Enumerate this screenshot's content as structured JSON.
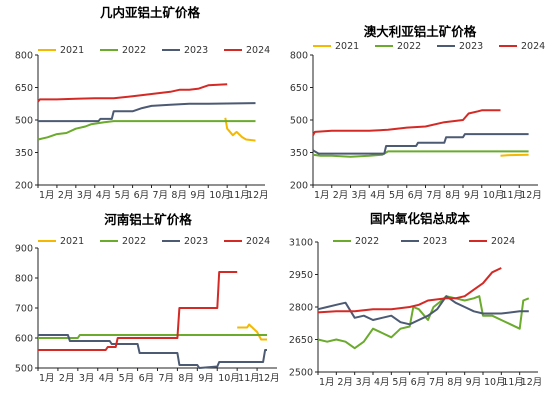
{
  "chart_data": [
    {
      "type": "line",
      "title": "几内亚铝土矿价格",
      "xlabel": "",
      "ylabel": "",
      "ylim": [
        200,
        800
      ],
      "yticks": [
        200,
        350,
        500,
        650,
        800
      ],
      "x_tick_labels": [
        "1月",
        "2月",
        "3月",
        "4月",
        "5月",
        "6月",
        "7月",
        "8月",
        "9月",
        "10月",
        "11月",
        "12月"
      ],
      "legend_placement": "top",
      "series": [
        {
          "name": "2021",
          "color": "#f5b800",
          "points": [
            [
              10.9,
              510
            ],
            [
              11.0,
              460
            ],
            [
              11.1,
              450
            ],
            [
              11.3,
              430
            ],
            [
              11.5,
              445
            ],
            [
              11.8,
              420
            ],
            [
              12.0,
              410
            ],
            [
              12.5,
              405
            ]
          ]
        },
        {
          "name": "2022",
          "color": "#6aaa2c",
          "points": [
            [
              1.0,
              410
            ],
            [
              1.5,
              420
            ],
            [
              2.0,
              435
            ],
            [
              2.5,
              440
            ],
            [
              3.0,
              460
            ],
            [
              3.5,
              470
            ],
            [
              3.8,
              480
            ],
            [
              4.5,
              490
            ],
            [
              5.0,
              495
            ],
            [
              12.5,
              495
            ]
          ]
        },
        {
          "name": "2023",
          "color": "#4c5a73",
          "points": [
            [
              1.0,
              495
            ],
            [
              4.2,
              495
            ],
            [
              4.3,
              505
            ],
            [
              4.9,
              505
            ],
            [
              5.0,
              540
            ],
            [
              6.0,
              540
            ],
            [
              6.5,
              555
            ],
            [
              7.0,
              565
            ],
            [
              8.0,
              570
            ],
            [
              9.0,
              575
            ],
            [
              10.0,
              575
            ],
            [
              12.5,
              578
            ]
          ]
        },
        {
          "name": "2024",
          "color": "#d42a26",
          "points": [
            [
              1.0,
              585
            ],
            [
              1.1,
              595
            ],
            [
              2.0,
              595
            ],
            [
              3.0,
              598
            ],
            [
              4.0,
              600
            ],
            [
              5.0,
              600
            ],
            [
              6.0,
              610
            ],
            [
              7.0,
              620
            ],
            [
              8.0,
              630
            ],
            [
              8.5,
              640
            ],
            [
              9.0,
              640
            ],
            [
              9.5,
              645
            ],
            [
              10.0,
              660
            ],
            [
              11.0,
              665
            ]
          ]
        }
      ]
    },
    {
      "type": "line",
      "title": "澳大利亚铝土矿价格",
      "xlabel": "",
      "ylabel": "",
      "ylim": [
        200,
        800
      ],
      "yticks": [
        200,
        350,
        500,
        650,
        800
      ],
      "x_tick_labels": [
        "1月",
        "2月",
        "3月",
        "4月",
        "5月",
        "6月",
        "7月",
        "8月",
        "9月",
        "10月",
        "11月",
        "12月"
      ],
      "legend_placement": "top",
      "series": [
        {
          "name": "2021",
          "color": "#f5b800",
          "points": [
            [
              11.0,
              335
            ],
            [
              11.5,
              338
            ],
            [
              12.5,
              340
            ]
          ]
        },
        {
          "name": "2022",
          "color": "#6aaa2c",
          "points": [
            [
              1.0,
              340
            ],
            [
              1.4,
              335
            ],
            [
              2.0,
              335
            ],
            [
              3.0,
              330
            ],
            [
              4.0,
              335
            ],
            [
              4.7,
              340
            ],
            [
              5.0,
              355
            ],
            [
              12.5,
              355
            ]
          ]
        },
        {
          "name": "2023",
          "color": "#4c5a73",
          "points": [
            [
              1.0,
              360
            ],
            [
              1.3,
              345
            ],
            [
              4.8,
              345
            ],
            [
              4.9,
              380
            ],
            [
              6.5,
              380
            ],
            [
              6.6,
              395
            ],
            [
              8.0,
              395
            ],
            [
              8.1,
              420
            ],
            [
              9.0,
              420
            ],
            [
              9.1,
              435
            ],
            [
              12.5,
              435
            ]
          ]
        },
        {
          "name": "2024",
          "color": "#d42a26",
          "points": [
            [
              1.0,
              430
            ],
            [
              1.1,
              445
            ],
            [
              2.0,
              450
            ],
            [
              4.0,
              450
            ],
            [
              5.0,
              455
            ],
            [
              6.0,
              465
            ],
            [
              7.0,
              470
            ],
            [
              8.0,
              490
            ],
            [
              9.0,
              500
            ],
            [
              9.3,
              530
            ],
            [
              9.8,
              540
            ],
            [
              10.0,
              545
            ],
            [
              11.0,
              545
            ]
          ]
        }
      ]
    },
    {
      "type": "line",
      "title": "河南铝土矿价格",
      "xlabel": "",
      "ylabel": "",
      "ylim": [
        500,
        900
      ],
      "yticks": [
        500,
        600,
        700,
        800,
        900
      ],
      "x_tick_labels": [
        "1月",
        "2月",
        "3月",
        "4月",
        "5月",
        "6月",
        "7月",
        "8月",
        "9月",
        "10月",
        "11月",
        "12月"
      ],
      "legend_placement": "top",
      "series": [
        {
          "name": "2021",
          "color": "#f5b800",
          "points": [
            [
              11.0,
              635
            ],
            [
              11.5,
              635
            ],
            [
              11.6,
              645
            ],
            [
              12.0,
              620
            ],
            [
              12.2,
              595
            ],
            [
              12.5,
              595
            ]
          ]
        },
        {
          "name": "2022",
          "color": "#6aaa2c",
          "points": [
            [
              1.0,
              600
            ],
            [
              3.0,
              600
            ],
            [
              3.1,
              610
            ],
            [
              12.5,
              610
            ]
          ]
        },
        {
          "name": "2023",
          "color": "#4c5a73",
          "points": [
            [
              1.0,
              610
            ],
            [
              2.5,
              610
            ],
            [
              2.6,
              590
            ],
            [
              4.0,
              590
            ],
            [
              4.6,
              590
            ],
            [
              4.7,
              580
            ],
            [
              6.0,
              580
            ],
            [
              6.1,
              550
            ],
            [
              8.0,
              550
            ],
            [
              8.1,
              510
            ],
            [
              9.0,
              510
            ],
            [
              9.1,
              500
            ],
            [
              10.0,
              505
            ],
            [
              10.1,
              520
            ],
            [
              12.3,
              520
            ],
            [
              12.4,
              560
            ],
            [
              12.5,
              560
            ]
          ]
        },
        {
          "name": "2024",
          "color": "#d42a26",
          "points": [
            [
              1.0,
              560
            ],
            [
              4.4,
              560
            ],
            [
              4.5,
              570
            ],
            [
              4.9,
              570
            ],
            [
              5.0,
              600
            ],
            [
              8.0,
              600
            ],
            [
              8.1,
              700
            ],
            [
              10.0,
              700
            ],
            [
              10.1,
              820
            ],
            [
              11.0,
              820
            ]
          ]
        }
      ]
    },
    {
      "type": "line",
      "title": "国内氧化铝总成本",
      "xlabel": "",
      "ylabel": "",
      "ylim": [
        2500,
        3100
      ],
      "yticks": [
        2500,
        2650,
        2800,
        2950,
        3100
      ],
      "x_tick_labels": [
        "1月",
        "2月",
        "3月",
        "4月",
        "5月",
        "6月",
        "7月",
        "8月",
        "9月",
        "10月",
        "11月",
        "12月"
      ],
      "legend_placement": "top",
      "series": [
        {
          "name": "2022",
          "color": "#6aaa2c",
          "points": [
            [
              1.0,
              2650
            ],
            [
              1.5,
              2640
            ],
            [
              2.0,
              2650
            ],
            [
              2.5,
              2640
            ],
            [
              3.0,
              2610
            ],
            [
              3.5,
              2640
            ],
            [
              4.0,
              2700
            ],
            [
              4.5,
              2680
            ],
            [
              5.0,
              2660
            ],
            [
              5.5,
              2700
            ],
            [
              6.0,
              2710
            ],
            [
              6.2,
              2800
            ],
            [
              6.5,
              2790
            ],
            [
              7.0,
              2740
            ],
            [
              7.3,
              2800
            ],
            [
              7.6,
              2820
            ],
            [
              8.0,
              2850
            ],
            [
              8.5,
              2840
            ],
            [
              9.0,
              2830
            ],
            [
              9.5,
              2840
            ],
            [
              9.8,
              2850
            ],
            [
              10.0,
              2760
            ],
            [
              10.5,
              2760
            ],
            [
              11.0,
              2740
            ],
            [
              11.5,
              2720
            ],
            [
              12.0,
              2700
            ],
            [
              12.2,
              2830
            ],
            [
              12.5,
              2840
            ]
          ]
        },
        {
          "name": "2023",
          "color": "#4c5a73",
          "points": [
            [
              1.0,
              2790
            ],
            [
              1.5,
              2800
            ],
            [
              2.0,
              2810
            ],
            [
              2.5,
              2820
            ],
            [
              3.0,
              2750
            ],
            [
              3.5,
              2760
            ],
            [
              4.0,
              2740
            ],
            [
              4.5,
              2750
            ],
            [
              5.0,
              2760
            ],
            [
              5.5,
              2730
            ],
            [
              6.0,
              2720
            ],
            [
              6.5,
              2740
            ],
            [
              7.0,
              2760
            ],
            [
              7.5,
              2790
            ],
            [
              8.0,
              2850
            ],
            [
              8.5,
              2820
            ],
            [
              9.0,
              2800
            ],
            [
              9.5,
              2780
            ],
            [
              10.0,
              2770
            ],
            [
              11.0,
              2770
            ],
            [
              12.0,
              2780
            ],
            [
              12.5,
              2780
            ]
          ]
        },
        {
          "name": "2024",
          "color": "#d42a26",
          "points": [
            [
              1.0,
              2775
            ],
            [
              2.0,
              2780
            ],
            [
              3.0,
              2780
            ],
            [
              4.0,
              2790
            ],
            [
              5.0,
              2790
            ],
            [
              6.0,
              2800
            ],
            [
              6.5,
              2810
            ],
            [
              7.0,
              2830
            ],
            [
              8.0,
              2840
            ],
            [
              8.5,
              2840
            ],
            [
              9.0,
              2850
            ],
            [
              9.5,
              2880
            ],
            [
              10.0,
              2910
            ],
            [
              10.5,
              2960
            ],
            [
              11.0,
              2980
            ]
          ]
        }
      ]
    }
  ]
}
